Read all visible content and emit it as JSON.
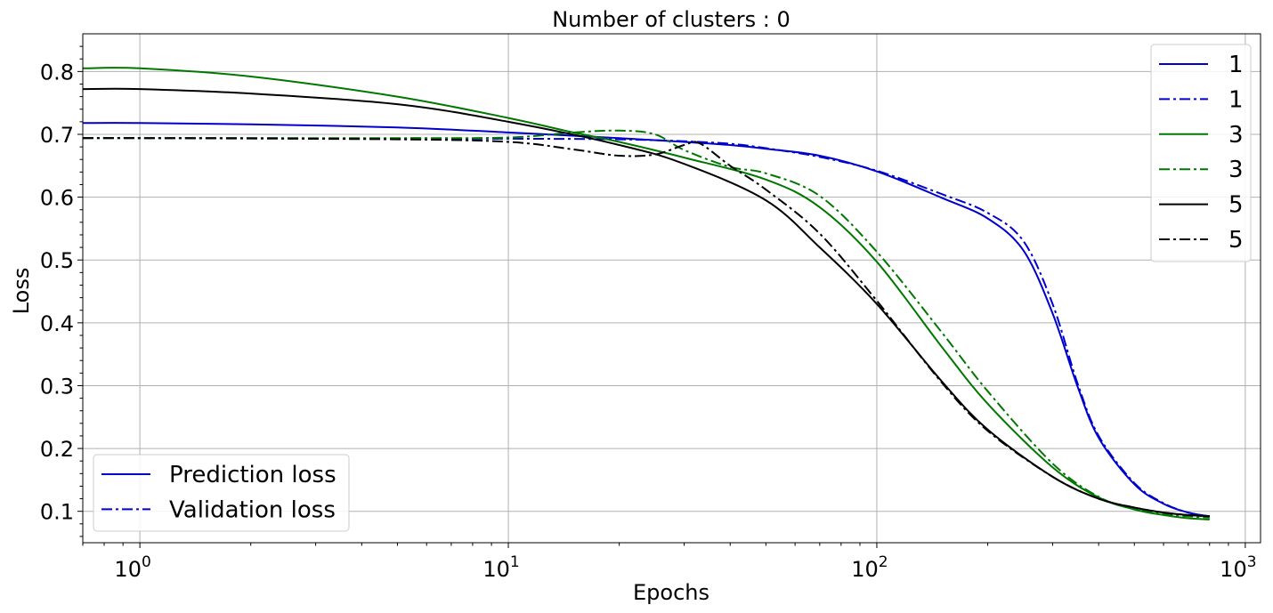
{
  "chart_data": {
    "type": "line",
    "title": "Number of clusters : 0",
    "xlabel": "Epochs",
    "ylabel": "Loss",
    "xscale": "log",
    "xlim": [
      0.7,
      1100
    ],
    "ylim": [
      0.05,
      0.86
    ],
    "grid": true,
    "xticks": [
      {
        "value": 1,
        "base": "10",
        "exp": "0"
      },
      {
        "value": 10,
        "base": "10",
        "exp": "1"
      },
      {
        "value": 100,
        "base": "10",
        "exp": "2"
      },
      {
        "value": 1000,
        "base": "10",
        "exp": "3"
      }
    ],
    "yticks": [
      {
        "value": 0.1,
        "label": "0.1"
      },
      {
        "value": 0.2,
        "label": "0.2"
      },
      {
        "value": 0.3,
        "label": "0.3"
      },
      {
        "value": 0.4,
        "label": "0.4"
      },
      {
        "value": 0.5,
        "label": "0.5"
      },
      {
        "value": 0.6,
        "label": "0.6"
      },
      {
        "value": 0.7,
        "label": "0.7"
      },
      {
        "value": 0.8,
        "label": "0.8"
      }
    ],
    "series": [
      {
        "name": "1",
        "color": "#0000cc",
        "style": "solid",
        "points": [
          [
            0.7,
            0.718
          ],
          [
            1,
            0.718
          ],
          [
            2,
            0.716
          ],
          [
            5,
            0.711
          ],
          [
            10,
            0.703
          ],
          [
            20,
            0.694
          ],
          [
            30,
            0.688
          ],
          [
            40,
            0.683
          ],
          [
            50,
            0.677
          ],
          [
            70,
            0.666
          ],
          [
            100,
            0.641
          ],
          [
            150,
            0.599
          ],
          [
            200,
            0.566
          ],
          [
            250,
            0.515
          ],
          [
            300,
            0.415
          ],
          [
            350,
            0.3
          ],
          [
            400,
            0.217
          ],
          [
            500,
            0.143
          ],
          [
            600,
            0.112
          ],
          [
            700,
            0.098
          ],
          [
            800,
            0.092
          ]
        ]
      },
      {
        "name": "1",
        "color": "#0000cc",
        "style": "dashdot",
        "points": [
          [
            0.7,
            0.694
          ],
          [
            1,
            0.694
          ],
          [
            2,
            0.694
          ],
          [
            5,
            0.693
          ],
          [
            10,
            0.693
          ],
          [
            20,
            0.692
          ],
          [
            30,
            0.689
          ],
          [
            40,
            0.685
          ],
          [
            50,
            0.678
          ],
          [
            70,
            0.664
          ],
          [
            100,
            0.642
          ],
          [
            150,
            0.605
          ],
          [
            200,
            0.575
          ],
          [
            250,
            0.53
          ],
          [
            300,
            0.43
          ],
          [
            350,
            0.305
          ],
          [
            400,
            0.22
          ],
          [
            500,
            0.145
          ],
          [
            600,
            0.113
          ],
          [
            700,
            0.098
          ],
          [
            800,
            0.092
          ]
        ]
      },
      {
        "name": "3",
        "color": "#007700",
        "style": "solid",
        "points": [
          [
            0.7,
            0.805
          ],
          [
            1,
            0.805
          ],
          [
            2,
            0.792
          ],
          [
            5,
            0.76
          ],
          [
            10,
            0.726
          ],
          [
            15,
            0.703
          ],
          [
            20,
            0.688
          ],
          [
            30,
            0.663
          ],
          [
            50,
            0.628
          ],
          [
            70,
            0.584
          ],
          [
            100,
            0.497
          ],
          [
            150,
            0.362
          ],
          [
            200,
            0.271
          ],
          [
            300,
            0.17
          ],
          [
            400,
            0.122
          ],
          [
            500,
            0.103
          ],
          [
            600,
            0.094
          ],
          [
            700,
            0.089
          ],
          [
            800,
            0.087
          ]
        ]
      },
      {
        "name": "3",
        "color": "#007700",
        "style": "dashdot",
        "points": [
          [
            0.7,
            0.694
          ],
          [
            1,
            0.694
          ],
          [
            5,
            0.694
          ],
          [
            10,
            0.695
          ],
          [
            15,
            0.703
          ],
          [
            20,
            0.706
          ],
          [
            25,
            0.7
          ],
          [
            30,
            0.675
          ],
          [
            40,
            0.648
          ],
          [
            50,
            0.638
          ],
          [
            70,
            0.602
          ],
          [
            100,
            0.513
          ],
          [
            150,
            0.385
          ],
          [
            200,
            0.291
          ],
          [
            300,
            0.176
          ],
          [
            400,
            0.123
          ],
          [
            500,
            0.104
          ],
          [
            600,
            0.096
          ],
          [
            700,
            0.092
          ],
          [
            800,
            0.09
          ]
        ]
      },
      {
        "name": "5",
        "color": "#000000",
        "style": "solid",
        "points": [
          [
            0.7,
            0.772
          ],
          [
            1,
            0.772
          ],
          [
            2,
            0.765
          ],
          [
            5,
            0.748
          ],
          [
            10,
            0.72
          ],
          [
            20,
            0.683
          ],
          [
            30,
            0.653
          ],
          [
            50,
            0.595
          ],
          [
            70,
            0.52
          ],
          [
            100,
            0.43
          ],
          [
            150,
            0.307
          ],
          [
            200,
            0.23
          ],
          [
            300,
            0.155
          ],
          [
            400,
            0.12
          ],
          [
            500,
            0.106
          ],
          [
            600,
            0.098
          ],
          [
            700,
            0.094
          ],
          [
            800,
            0.092
          ]
        ]
      },
      {
        "name": "5",
        "color": "#000000",
        "style": "dashdot",
        "points": [
          [
            0.7,
            0.694
          ],
          [
            1,
            0.694
          ],
          [
            5,
            0.692
          ],
          [
            10,
            0.688
          ],
          [
            15,
            0.676
          ],
          [
            20,
            0.666
          ],
          [
            25,
            0.668
          ],
          [
            30,
            0.683
          ],
          [
            33,
            0.686
          ],
          [
            40,
            0.65
          ],
          [
            50,
            0.612
          ],
          [
            70,
            0.542
          ],
          [
            100,
            0.435
          ],
          [
            150,
            0.305
          ],
          [
            200,
            0.228
          ],
          [
            300,
            0.155
          ],
          [
            400,
            0.12
          ],
          [
            500,
            0.106
          ],
          [
            600,
            0.098
          ],
          [
            700,
            0.094
          ],
          [
            800,
            0.092
          ]
        ]
      }
    ],
    "legend_series": {
      "placement": "upper right"
    },
    "legend_styles": {
      "placement": "lower left",
      "entries": [
        {
          "label": "Prediction loss",
          "color": "#0000cc",
          "style": "solid"
        },
        {
          "label": "Validation loss",
          "color": "#0000cc",
          "style": "dashdot"
        }
      ]
    }
  }
}
